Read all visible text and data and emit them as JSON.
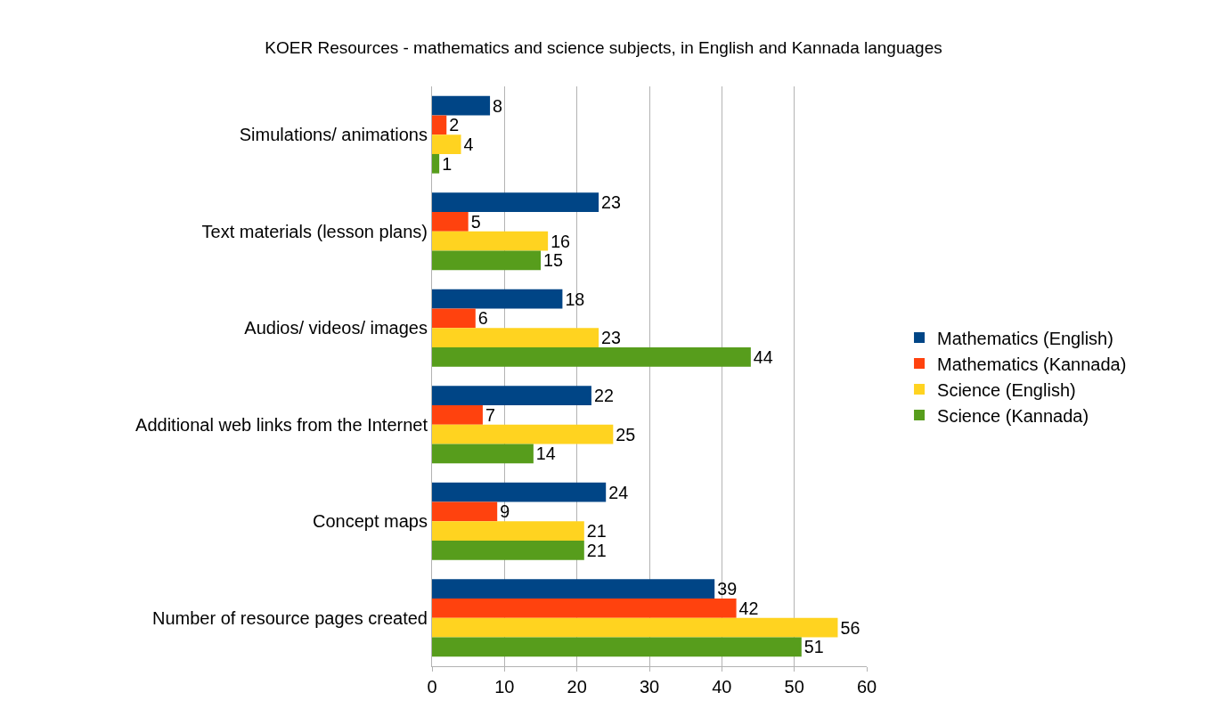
{
  "chart_data": {
    "type": "bar",
    "orientation": "horizontal",
    "title": "KOER Resources - mathematics and science subjects, in English and Kannada languages",
    "categories": [
      "Simulations/ animations",
      "Text materials (lesson plans)",
      "Audios/ videos/ images",
      "Additional web links from the Internet",
      "Concept maps",
      "Number of resource pages created"
    ],
    "series": [
      {
        "name": "Mathematics (English)",
        "color": "#004586",
        "values": [
          8,
          23,
          18,
          22,
          24,
          39
        ]
      },
      {
        "name": "Mathematics (Kannada)",
        "color": "#ff420e",
        "values": [
          2,
          5,
          6,
          7,
          9,
          42
        ]
      },
      {
        "name": "Science (English)",
        "color": "#ffd320",
        "values": [
          4,
          16,
          23,
          25,
          21,
          56
        ]
      },
      {
        "name": "Science (Kannada)",
        "color": "#579d1c",
        "values": [
          1,
          15,
          44,
          14,
          21,
          51
        ]
      }
    ],
    "xlim": [
      0,
      60
    ],
    "xticks": [
      0,
      10,
      20,
      30,
      40,
      50,
      60
    ],
    "grid": "x",
    "legend": "right",
    "data_labels": true
  }
}
